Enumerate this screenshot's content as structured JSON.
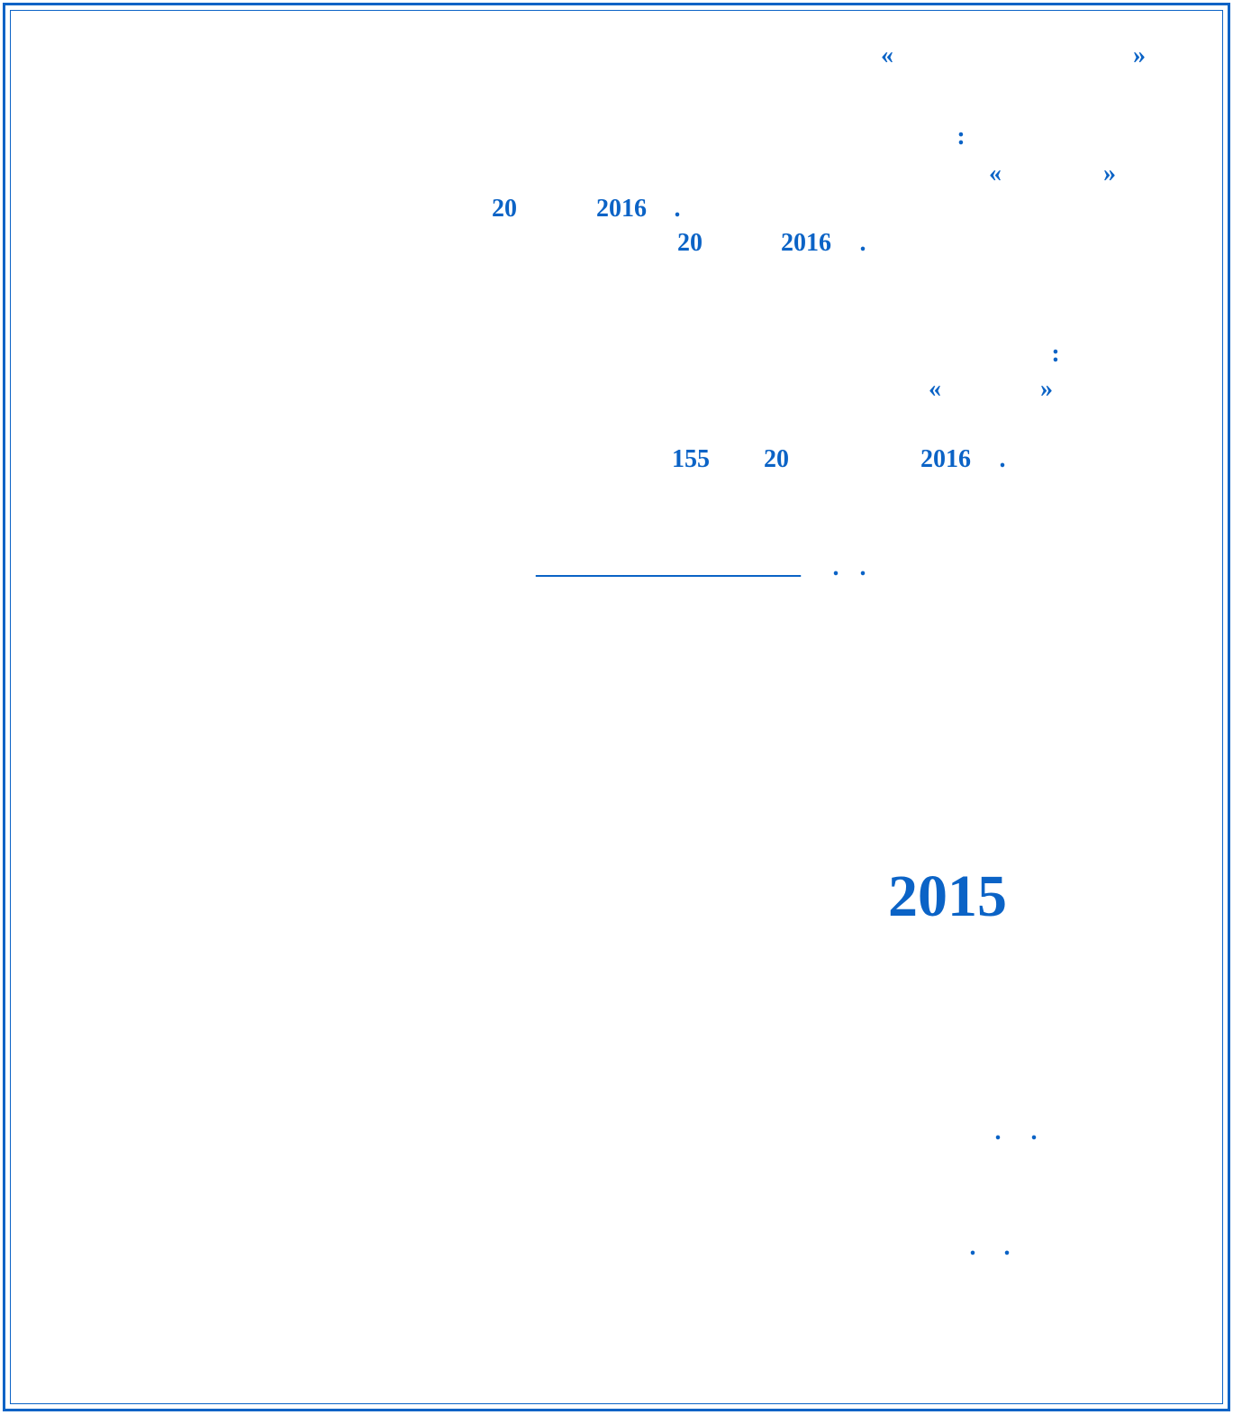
{
  "lines": [
    [
      "«",
      "»"
    ],
    [
      ":"
    ],
    [
      "«",
      "»"
    ],
    [
      "20",
      "2016",
      "."
    ],
    [
      "20",
      "2016",
      "."
    ],
    [
      ":"
    ],
    [
      "«",
      "»"
    ],
    [
      "155",
      "20",
      "2016",
      "."
    ],
    [
      "_____________________",
      ".",
      "."
    ],
    [
      "2015"
    ],
    [
      ".",
      "."
    ],
    [
      ".",
      "."
    ]
  ]
}
